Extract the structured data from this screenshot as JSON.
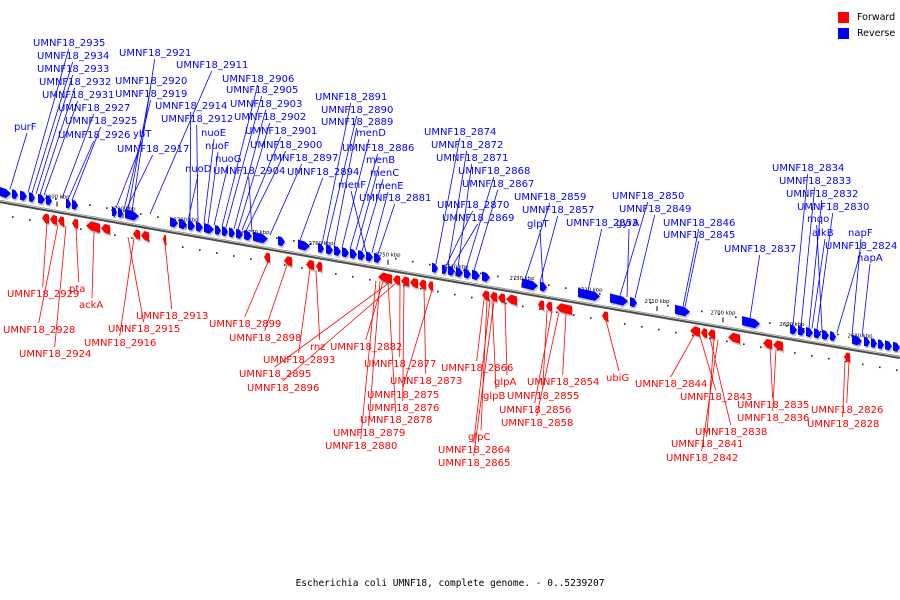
{
  "legend": {
    "forward_label": "Forward",
    "reverse_label": "Reverse",
    "forward_color": "#ff0000",
    "reverse_color": "#0000ff"
  },
  "caption": "Escherichia coli UMNF18, complete genome. - 0..5239207",
  "ticks": [
    "2800 kbp",
    "2790 kbp",
    "2780 kbp",
    "2770 kbp",
    "2760 kbp",
    "2750 kbp",
    "2740 kbp",
    "2730 kbp",
    "2720 kbp",
    "2710 kbp",
    "2700 kbp",
    "2690 kbp",
    "2680 kbp"
  ],
  "reverse_labels": [
    "UMNF18_2935",
    "UMNF18_2934",
    "UMNF18_2933",
    "UMNF18_2932",
    "UMNF18_2931",
    "UMNF18_2927",
    "UMNF18_2925",
    "UMNF18_2926",
    "purF",
    "UMNF18_2921",
    "UMNF18_2920",
    "UMNF18_2919",
    "ybT",
    "UMNF18_2917",
    "UMNF18_2911",
    "UMNF18_2914",
    "UMNF18_2912",
    "nuoE",
    "nuoF",
    "nuoG",
    "nuoD",
    "UMNF18_2906",
    "UMNF18_2905",
    "UMNF18_2903",
    "UMNF18_2902",
    "UMNF18_2901",
    "UMNF18_2900",
    "UMNF18_2904",
    "UMNF18_2897",
    "UMNF18_2894",
    "UMNF18_2891",
    "UMNF18_2890",
    "UMNF18_2889",
    "menD",
    "UMNF18_2886",
    "menB",
    "menC",
    "menF",
    "menE",
    "UMNF18_2881",
    "UMNF18_2874",
    "UMNF18_2872",
    "UMNF18_2871",
    "UMNF18_2868",
    "UMNF18_2867",
    "UMNF18_2870",
    "UMNF18_2869",
    "UMNF18_2859",
    "UMNF18_2857",
    "glpT",
    "UMNF18_2853",
    "UMNF18_2850",
    "UMNF18_2849",
    "gyrA",
    "UMNF18_2846",
    "UMNF18_2845",
    "UMNF18_2837",
    "UMNF18_2834",
    "UMNF18_2833",
    "UMNF18_2832",
    "UMNF18_2830",
    "mqo",
    "alkB",
    "napF",
    "UMNF18_2824",
    "napA"
  ],
  "forward_labels": [
    "UMNF18_2929",
    "UMNF18_2928",
    "UMNF18_2924",
    "pta",
    "ackA",
    "UMNF18_2915",
    "UMNF18_2916",
    "UMNF18_2913",
    "UMNF18_2899",
    "UMNF18_2898",
    "UMNF18_2893",
    "UMNF18_2895",
    "UMNF18_2896",
    "rnz",
    "UMNF18_2882",
    "UMNF18_2877",
    "UMNF18_2873",
    "UMNF18_2875",
    "UMNF18_2876",
    "UMNF18_2878",
    "UMNF18_2879",
    "UMNF18_2880",
    "UMNF18_2866",
    "glpA",
    "glpB",
    "UMNF18_2855",
    "UMNF18_2856",
    "UMNF18_2858",
    "glpC",
    "UMNF18_2864",
    "UMNF18_2865",
    "UMNF18_2854",
    "ubiG",
    "UMNF18_2844",
    "UMNF18_2843",
    "UMNF18_2838",
    "UMNF18_2841",
    "UMNF18_2842",
    "UMNF18_2835",
    "UMNF18_2836",
    "UMNF18_2826",
    "UMNF18_2828"
  ]
}
